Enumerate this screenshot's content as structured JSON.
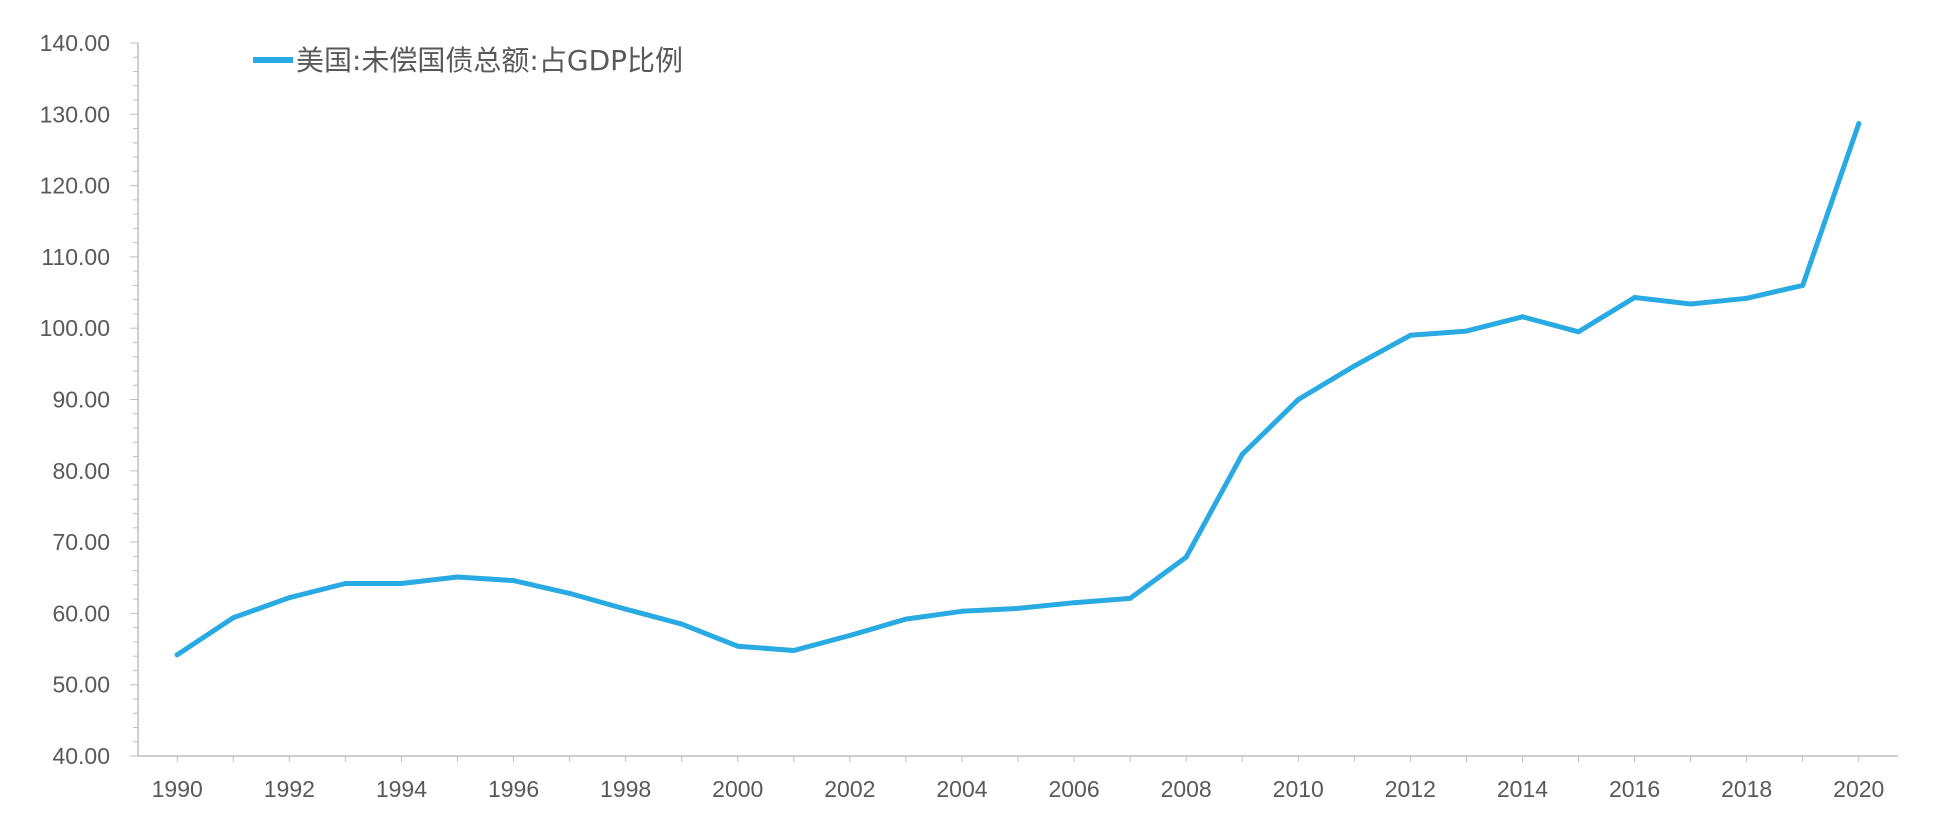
{
  "chart_data": {
    "type": "line",
    "title": "",
    "xlabel": "",
    "ylabel": "",
    "grid": false,
    "legend_position": "top-left",
    "colors": {
      "series": "#2aaae2",
      "axis": "#bfbfbf",
      "text": "#595959"
    },
    "ylim": [
      40,
      140
    ],
    "y_ticks": [
      "40.00",
      "50.00",
      "60.00",
      "70.00",
      "80.00",
      "90.00",
      "100.00",
      "110.00",
      "120.00",
      "130.00",
      "140.00"
    ],
    "x_ticks": [
      "1990",
      "1992",
      "1994",
      "1996",
      "1998",
      "2000",
      "2002",
      "2004",
      "2006",
      "2008",
      "2010",
      "2012",
      "2014",
      "2016",
      "2018",
      "2020"
    ],
    "x": [
      1990,
      1991,
      1992,
      1993,
      1994,
      1995,
      1996,
      1997,
      1998,
      1999,
      2000,
      2001,
      2002,
      2003,
      2004,
      2005,
      2006,
      2007,
      2008,
      2009,
      2010,
      2011,
      2012,
      2013,
      2014,
      2015,
      2016,
      2017,
      2018,
      2019,
      2020
    ],
    "series": [
      {
        "name": "美国:未偿国债总额:占GDP比例",
        "values": [
          54.2,
          59.4,
          62.2,
          64.2,
          64.2,
          65.1,
          64.6,
          62.8,
          60.6,
          58.5,
          55.4,
          54.8,
          56.9,
          59.2,
          60.3,
          60.7,
          61.5,
          62.1,
          67.9,
          82.3,
          90.0,
          94.7,
          99.0,
          99.6,
          101.6,
          99.5,
          104.3,
          103.4,
          104.2,
          106.0,
          128.7
        ]
      }
    ]
  }
}
